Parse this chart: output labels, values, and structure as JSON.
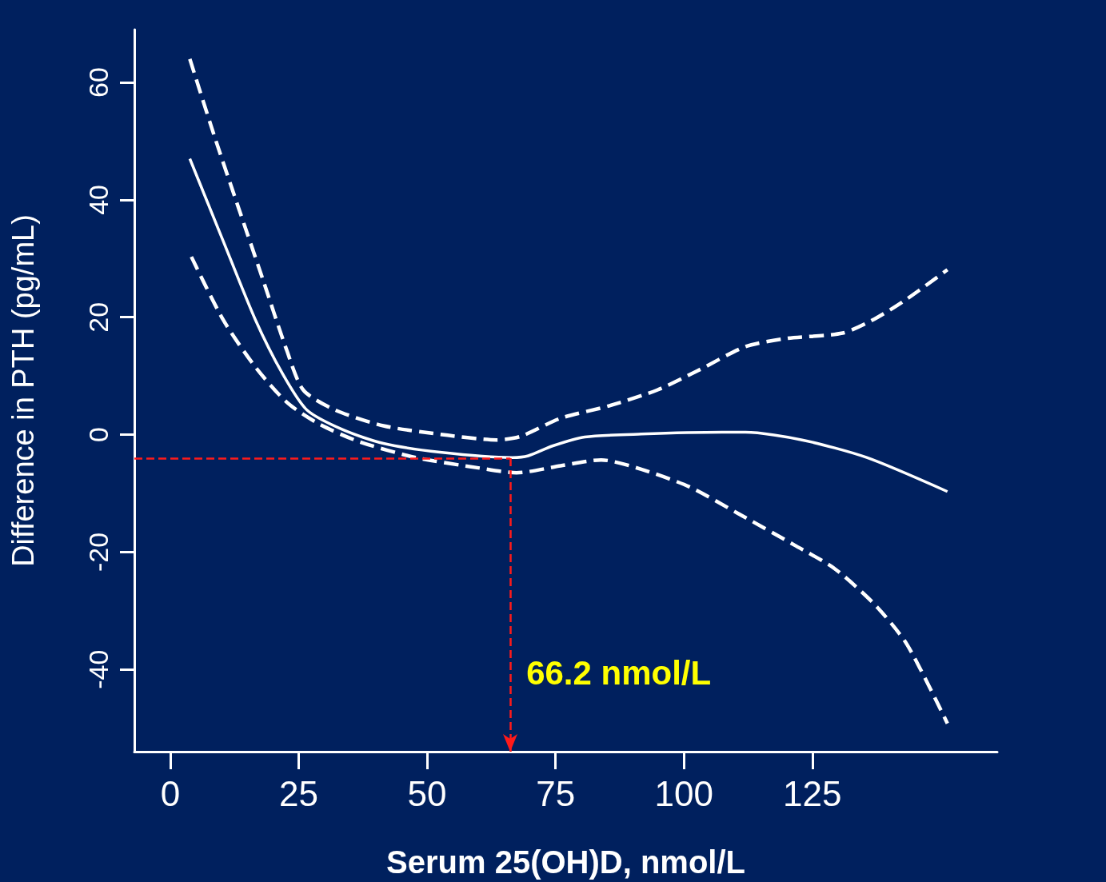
{
  "chart_data": {
    "type": "line",
    "xlabel": "Serum 25(OH)D, nmol/L",
    "ylabel": "Difference in PTH (pg/mL)",
    "xlim": [
      -7,
      161
    ],
    "xticks": [
      0,
      25,
      50,
      75,
      100,
      125
    ],
    "ylim": [
      -54,
      69
    ],
    "yticks": [
      -40,
      -20,
      0,
      20,
      40,
      60
    ],
    "grid": false,
    "marker": "none",
    "series": [
      {
        "color": "#ffffff",
        "line_style": "solid",
        "x": [
          3.8,
          10.2,
          16.5,
          21.9,
          26.6,
          33.7,
          41.5,
          52.5,
          66.6,
          69.7,
          74.5,
          80.7,
          91.7,
          107.4,
          112,
          123,
          135.6,
          151.3
        ],
        "values": [
          47,
          33.2,
          19.7,
          10.3,
          4.2,
          0.8,
          -1.5,
          -3.0,
          -3.9,
          -3.6,
          -1.9,
          -0.4,
          0.1,
          0.4,
          0.4,
          -0.9,
          -3.9,
          -9.7
        ]
      },
      {
        "color": "#ffffff",
        "line_style": "dashed",
        "x": [
          3.8,
          8.6,
          13.3,
          18,
          22.7,
          25.9,
          32.1,
          41.5,
          54,
          63.5,
          68.2,
          76,
          85.4,
          94.8,
          102.7,
          112,
          120,
          130.9,
          137.1,
          143.4,
          151.3
        ],
        "values": [
          64,
          50.8,
          38.6,
          26.5,
          14.3,
          7.6,
          4.2,
          1.5,
          -0.1,
          -0.9,
          -0.3,
          2.8,
          4.9,
          7.6,
          10.9,
          15,
          16.4,
          17.3,
          19.7,
          23.1,
          28.1
        ]
      },
      {
        "color": "#ffffff",
        "line_style": "dashed",
        "x": [
          4.1,
          10.2,
          16.5,
          22.7,
          29,
          36.8,
          47.8,
          60.3,
          67.4,
          76,
          83.9,
          91.7,
          101.1,
          110.5,
          121.5,
          129.3,
          137.1,
          143.4,
          151.3
        ],
        "values": [
          30.3,
          19.7,
          11.6,
          5.5,
          1.8,
          -1.2,
          -3.9,
          -5.7,
          -6.5,
          -5.3,
          -4.3,
          -5.9,
          -8.9,
          -13.4,
          -18.8,
          -22.8,
          -28.9,
          -35.7,
          -49.2
        ]
      }
    ],
    "ref_lines": [
      {
        "axis": "y",
        "value": -4,
        "label": null,
        "color": "#ff1a1a",
        "line_style": "dashed"
      },
      {
        "axis": "x",
        "value": 66.2,
        "label": "66.2 nmol/L",
        "color": "#ff1a1a",
        "line_style": "dashed"
      }
    ]
  }
}
